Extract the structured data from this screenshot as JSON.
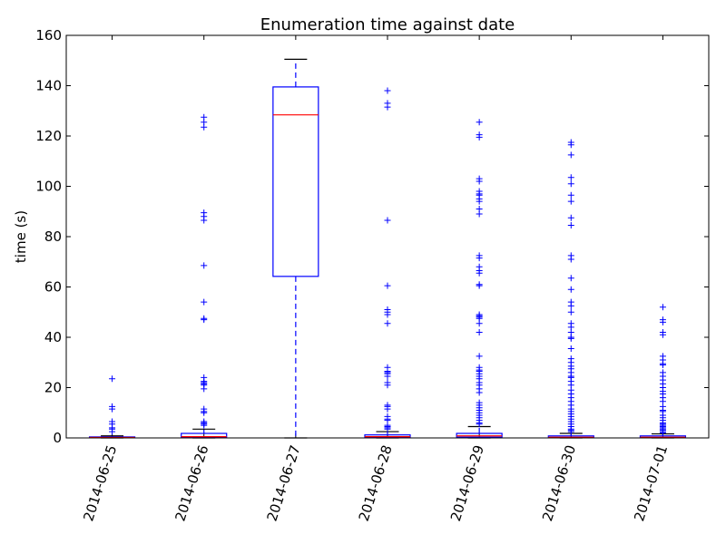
{
  "chart_data": {
    "type": "box",
    "title": "Enumeration time against date",
    "xlabel": "",
    "ylabel": "time (s)",
    "ylim": [
      0,
      160
    ],
    "yticks": [
      0,
      20,
      40,
      60,
      80,
      100,
      120,
      140,
      160
    ],
    "grid": false,
    "colors": {
      "box": "#0000ff",
      "median": "#ff0000",
      "cap": "#000000",
      "flier": "#0000ff"
    },
    "categories": [
      "2014-06-25",
      "2014-06-26",
      "2014-06-27",
      "2014-06-28",
      "2014-06-29",
      "2014-06-30",
      "2014-07-01"
    ],
    "boxes": [
      {
        "q1": 0.1,
        "median": 0.2,
        "q3": 0.4,
        "whisker_low": 0.0,
        "whisker_high": 0.8,
        "fliers": [
          23.5,
          12.5,
          11.5,
          6.5,
          5.5,
          4.0,
          3.5,
          2.5
        ]
      },
      {
        "q1": 0.2,
        "median": 0.5,
        "q3": 1.8,
        "whisker_low": 0.0,
        "whisker_high": 3.5,
        "fliers": [
          127.5,
          125.5,
          123.5,
          89.5,
          88.0,
          86.5,
          68.5,
          54.0,
          47.5,
          47.0,
          24.0,
          22.5,
          22.0,
          21.5,
          21.0,
          19.5,
          11.5,
          10.5,
          10.0,
          6.5,
          6.0,
          5.5,
          5.0
        ]
      },
      {
        "q1": 64.2,
        "median": 128.4,
        "q3": 139.5,
        "whisker_low": 0.0,
        "whisker_high": 150.5,
        "fliers": []
      },
      {
        "q1": 0.2,
        "median": 0.5,
        "q3": 1.2,
        "whisker_low": 0.0,
        "whisker_high": 2.5,
        "fliers": [
          138.0,
          133.0,
          131.5,
          86.5,
          60.5,
          51.0,
          50.0,
          49.0,
          45.5,
          28.0,
          26.5,
          26.0,
          25.5,
          24.5,
          22.0,
          21.0,
          13.0,
          12.5,
          11.5,
          8.5,
          7.5,
          7.0,
          5.0,
          4.5,
          4.0,
          3.5
        ]
      },
      {
        "q1": 0.3,
        "median": 0.8,
        "q3": 1.8,
        "whisker_low": 0.0,
        "whisker_high": 4.5,
        "fliers": [
          125.5,
          120.5,
          119.5,
          103.0,
          102.0,
          98.0,
          97.0,
          96.5,
          95.0,
          94.0,
          91.0,
          89.0,
          72.5,
          71.5,
          68.0,
          66.5,
          65.5,
          61.0,
          60.5,
          49.0,
          48.5,
          48.0,
          47.5,
          45.5,
          42.0,
          32.5,
          28.0,
          27.0,
          26.5,
          25.5,
          24.5,
          23.5,
          22.0,
          21.0,
          19.5,
          18.0,
          14.0,
          13.0,
          12.0,
          11.0,
          10.0,
          9.0,
          8.0,
          7.0,
          6.0,
          5.5
        ]
      },
      {
        "q1": 0.1,
        "median": 0.3,
        "q3": 0.8,
        "whisker_low": 0.0,
        "whisker_high": 1.8,
        "fliers": [
          117.5,
          116.5,
          112.5,
          103.5,
          101.0,
          96.5,
          94.0,
          87.5,
          84.5,
          72.5,
          71.0,
          63.5,
          59.0,
          54.0,
          52.5,
          50.0,
          45.5,
          44.0,
          42.0,
          40.0,
          39.5,
          35.5,
          31.5,
          30.0,
          28.5,
          27.5,
          26.0,
          24.5,
          24.0,
          22.5,
          21.0,
          19.0,
          17.5,
          16.0,
          14.5,
          13.0,
          11.5,
          10.5,
          9.5,
          8.5,
          7.5,
          6.5,
          5.5,
          4.5,
          3.5,
          3.0,
          2.5
        ]
      },
      {
        "q1": 0.1,
        "median": 0.3,
        "q3": 0.8,
        "whisker_low": 0.0,
        "whisker_high": 1.6,
        "fliers": [
          52.0,
          47.0,
          46.0,
          42.0,
          41.0,
          32.5,
          31.0,
          29.5,
          29.0,
          26.0,
          24.5,
          23.0,
          21.5,
          20.0,
          18.5,
          17.5,
          16.0,
          14.5,
          12.5,
          11.0,
          10.5,
          9.0,
          8.0,
          7.0,
          6.0,
          5.5,
          5.0,
          4.5,
          4.0,
          3.5,
          3.0,
          2.5,
          2.0
        ]
      }
    ]
  }
}
